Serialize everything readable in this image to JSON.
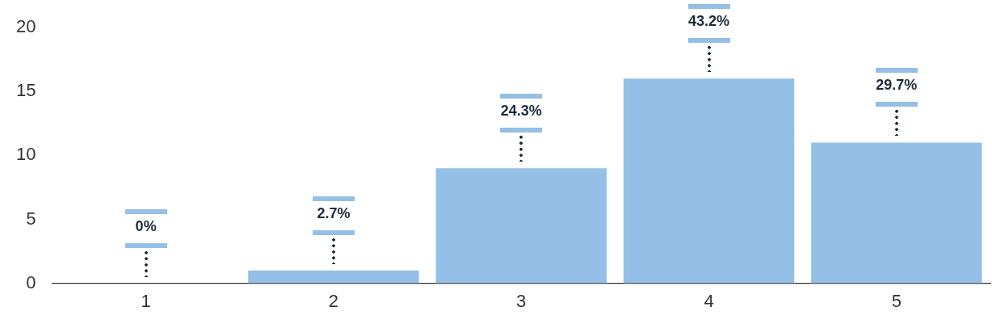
{
  "chart_data": {
    "type": "bar",
    "categories": [
      "1",
      "2",
      "3",
      "4",
      "5"
    ],
    "values": [
      0,
      1,
      9,
      16,
      11
    ],
    "annotations": [
      "0%",
      "2.7%",
      "24.3%",
      "43.2%",
      "29.7%"
    ],
    "color": "#94bfe6",
    "ylim": [
      0,
      20
    ],
    "yticks": [
      0,
      5,
      10,
      15,
      20
    ],
    "grid": false,
    "legend": false
  }
}
